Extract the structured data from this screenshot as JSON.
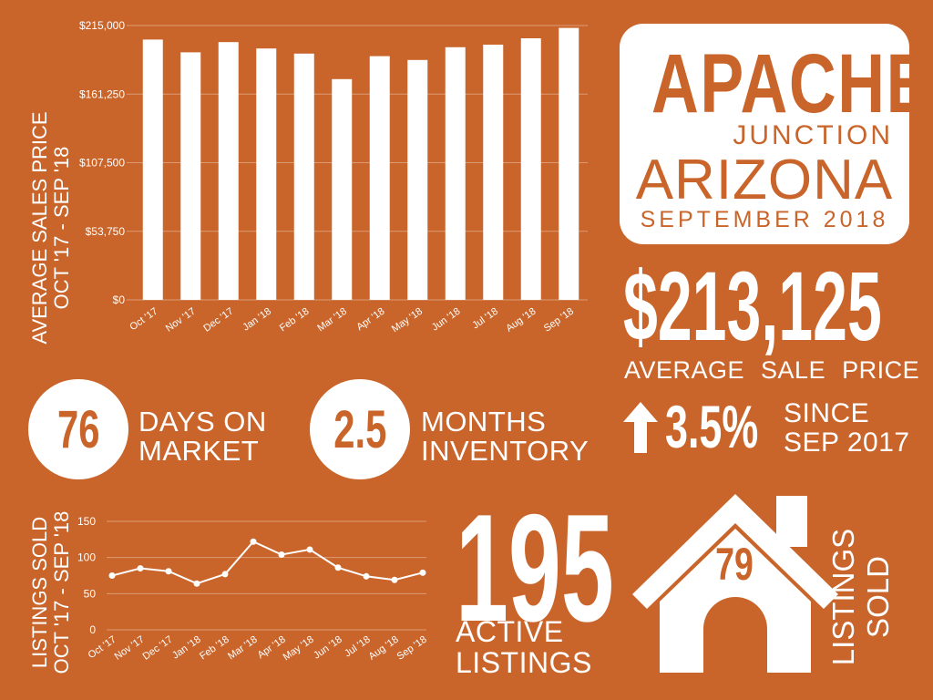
{
  "title": {
    "line1": "APACHE",
    "line2": "JUNCTION",
    "line3": "ARIZONA",
    "line4": "SEPTEMBER 2018"
  },
  "colors": {
    "background": "#c9652a",
    "foreground": "#ffffff"
  },
  "stats": {
    "avg_price": "$213,125",
    "avg_price_label": "AVERAGE SALE PRICE",
    "change_pct": "3.5%",
    "change_direction": "up-arrow-icon",
    "change_label_1": "SINCE",
    "change_label_2": "SEP 2017",
    "days_on_market": "76",
    "dom_label_1": "DAYS ON",
    "dom_label_2": "MARKET",
    "months_inventory": "2.5",
    "moi_label_1": "MONTHS",
    "moi_label_2": "INVENTORY",
    "active_listings": "195",
    "active_label_1": "ACTIVE",
    "active_label_2": "LISTINGS",
    "listings_sold": "79",
    "sold_label_1": "LISTINGS",
    "sold_label_2": "SOLD",
    "house_icon": "house-icon"
  },
  "chart_data": [
    {
      "type": "bar",
      "title": "",
      "ylabel": "AVERAGE SALES PRICE OCT '17 - SEP '18",
      "ylabel_1": "AVERAGE SALES PRICE",
      "ylabel_2": "OCT '17 - SEP '18",
      "categories": [
        "Oct '17",
        "Nov '17",
        "Dec '17",
        "Jan '18",
        "Feb '18",
        "Mar '18",
        "Apr '18",
        "May '18",
        "Jun '18",
        "Jul '18",
        "Aug '18",
        "Sep '18"
      ],
      "values": [
        204000,
        194000,
        202000,
        197000,
        193000,
        173000,
        191000,
        188000,
        198000,
        200000,
        205000,
        213125
      ],
      "ylim": [
        0,
        215000
      ],
      "yticks": [
        "$0",
        "$53,750",
        "$107,500",
        "$161,250",
        "$215,000"
      ],
      "ytick_values": [
        0,
        53750,
        107500,
        161250,
        215000
      ],
      "grid": true
    },
    {
      "type": "line",
      "title": "",
      "ylabel": "LISTINGS SOLD OCT '17 - SEP '18",
      "ylabel_1": "LISTINGS SOLD",
      "ylabel_2": "OCT '17 - SEP '18",
      "categories": [
        "Oct '17",
        "Nov '17",
        "Dec '17",
        "Jan '18",
        "Feb '18",
        "Mar '18",
        "Apr '18",
        "May '18",
        "Jun '18",
        "Jul '18",
        "Aug '18",
        "Sep '18"
      ],
      "values": [
        75,
        85,
        81,
        64,
        77,
        122,
        104,
        111,
        86,
        74,
        69,
        79
      ],
      "ylim": [
        0,
        150
      ],
      "yticks": [
        "0",
        "50",
        "100",
        "150"
      ],
      "ytick_values": [
        0,
        50,
        100,
        150
      ],
      "grid": true
    }
  ]
}
